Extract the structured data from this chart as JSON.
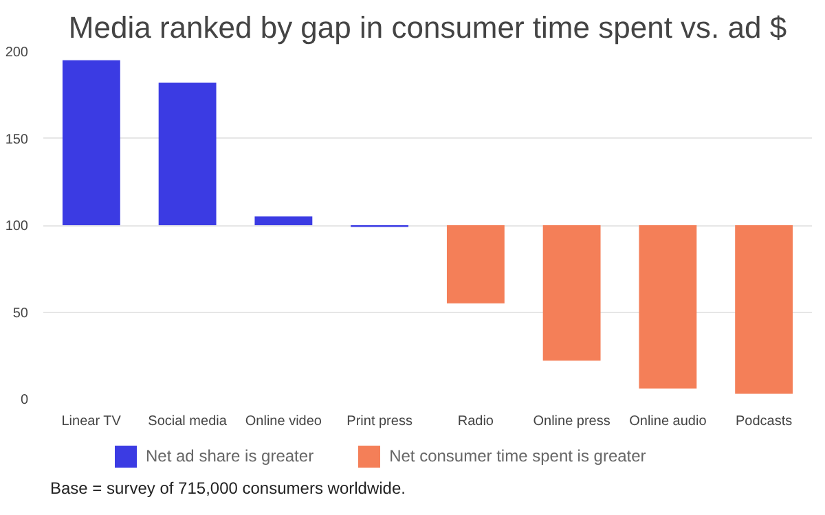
{
  "chart_data": {
    "type": "bar",
    "title": "Media ranked by gap in consumer time spent vs. ad $",
    "categories": [
      "Linear TV",
      "Social media",
      "Online video",
      "Print press",
      "Radio",
      "Online press",
      "Online audio",
      "Podcasts"
    ],
    "series": [
      {
        "name": "Net ad share is greater",
        "color": "#3b3be3",
        "base": [
          100,
          100,
          100,
          100,
          null,
          null,
          null,
          null
        ],
        "values": [
          95,
          82,
          5,
          -1,
          null,
          null,
          null,
          null
        ]
      },
      {
        "name": "Net consumer time spent is greater",
        "color": "#f47f58",
        "base": [
          null,
          null,
          null,
          null,
          100,
          100,
          100,
          100
        ],
        "values": [
          null,
          null,
          null,
          null,
          -45,
          -78,
          -94,
          -97
        ]
      }
    ],
    "ylim": [
      0,
      200
    ],
    "yticks": [
      0,
      50,
      100,
      150,
      200
    ],
    "grid": "y",
    "legend": "bottom",
    "annotations": [
      "Base = survey of 715,000 consumers worldwide."
    ]
  }
}
